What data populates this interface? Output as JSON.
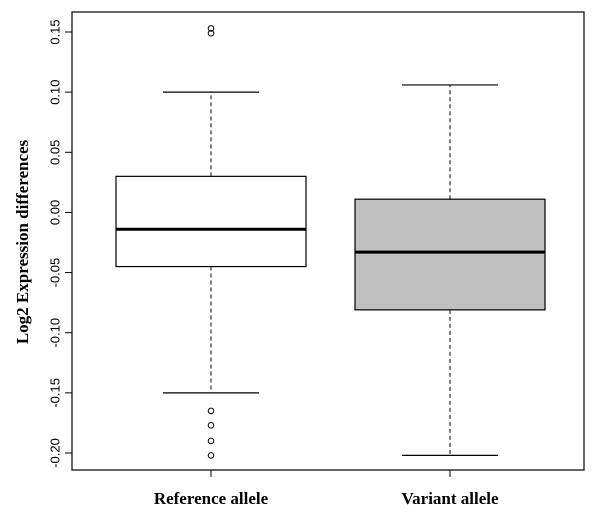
{
  "chart_data": {
    "type": "boxplot",
    "title": "",
    "xlabel": "",
    "ylabel": "Log2 Expression differences",
    "ylim": [
      -0.21,
      0.165
    ],
    "yticks": [
      -0.2,
      -0.15,
      -0.1,
      -0.05,
      0.0,
      0.05,
      0.1,
      0.15
    ],
    "ytick_labels": [
      "-0.20",
      "-0.15",
      "-0.10",
      "-0.05",
      "0.00",
      "0.05",
      "0.10",
      "0.15"
    ],
    "categories": [
      "Reference allele",
      "Variant allele"
    ],
    "boxes": [
      {
        "name": "Reference allele",
        "whisker_low": -0.15,
        "q1": -0.045,
        "median": -0.014,
        "q3": 0.03,
        "whisker_high": 0.1,
        "outliers": [
          0.149,
          0.153,
          -0.165,
          -0.177,
          -0.19,
          -0.202
        ],
        "fill": "#ffffff"
      },
      {
        "name": "Variant allele",
        "whisker_low": -0.202,
        "q1": -0.081,
        "median": -0.033,
        "q3": 0.011,
        "whisker_high": 0.106,
        "outliers": [],
        "fill": "#c0c0c0"
      }
    ],
    "grid": false,
    "legend": "none"
  }
}
